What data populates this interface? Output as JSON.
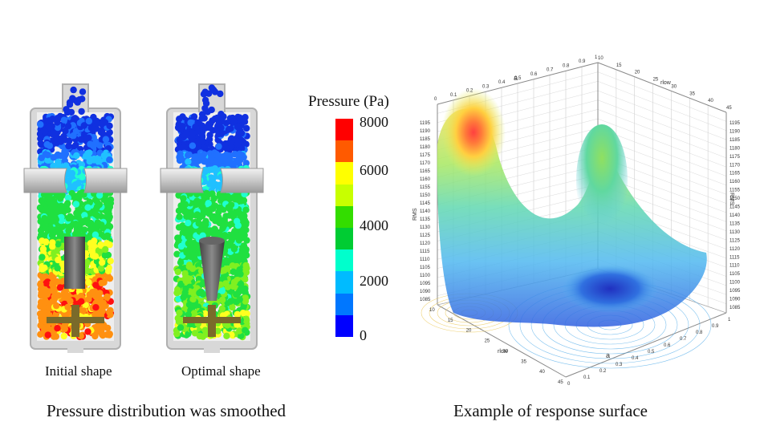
{
  "left_panel": {
    "initial_caption": "Initial shape",
    "optimal_caption": "Optimal shape",
    "bottom_caption": "Pressure distribution was smoothed"
  },
  "legend": {
    "title": "Pressure (Pa)",
    "ticks": [
      "8000",
      "6000",
      "4000",
      "2000",
      "0"
    ],
    "colors": [
      "#ff0000",
      "#ff5a00",
      "#ffff00",
      "#c8ff00",
      "#33dd00",
      "#00cc33",
      "#00ffcc",
      "#00bbff",
      "#0077ff",
      "#0000ff"
    ]
  },
  "right_panel": {
    "bottom_caption": "Example of response surface",
    "axis_a_label": "a",
    "axis_rlow_label": "rlow",
    "axis_rms_label": "RMS",
    "a_ticks": [
      "0",
      "0.1",
      "0.2",
      "0.3",
      "0.4",
      "0.5",
      "0.6",
      "0.7",
      "0.8",
      "0.9",
      "1"
    ],
    "rlow_ticks": [
      "10",
      "15",
      "20",
      "25",
      "30",
      "35",
      "40",
      "45"
    ],
    "rms_ticks": [
      "1085",
      "1090",
      "1095",
      "1100",
      "1105",
      "1110",
      "1115",
      "1120",
      "1125",
      "1130",
      "1135",
      "1140",
      "1145",
      "1150",
      "1155",
      "1160",
      "1165",
      "1170",
      "1175",
      "1180",
      "1185",
      "1190",
      "1195"
    ]
  }
}
